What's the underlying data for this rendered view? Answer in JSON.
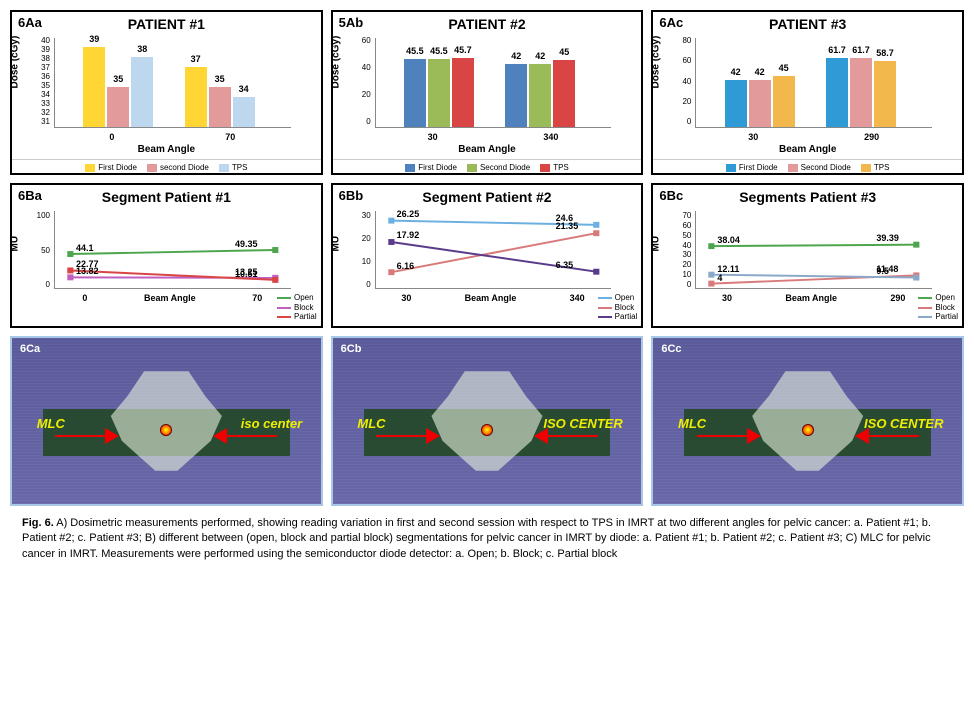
{
  "panels_a": [
    {
      "id": "6Aa",
      "title": "PATIENT #1",
      "y_label": "Dose (cGy)",
      "x_label": "Beam Angle",
      "ylim": [
        31,
        40
      ],
      "yticks": [
        40,
        39,
        38,
        37,
        36,
        35,
        34,
        33,
        32,
        31
      ],
      "groups": [
        {
          "x": "0",
          "bars": [
            {
              "v": 39,
              "c": "#ffd633"
            },
            {
              "v": 35,
              "c": "#e29a9a"
            },
            {
              "v": 38,
              "c": "#bdd7ee"
            }
          ]
        },
        {
          "x": "70",
          "bars": [
            {
              "v": 37,
              "c": "#ffd633"
            },
            {
              "v": 35,
              "c": "#e29a9a"
            },
            {
              "v": 34,
              "c": "#bdd7ee"
            }
          ]
        }
      ],
      "legend": [
        {
          "l": "First Diode",
          "c": "#ffd633"
        },
        {
          "l": "second Diode",
          "c": "#e29a9a"
        },
        {
          "l": "TPS",
          "c": "#bdd7ee"
        }
      ]
    },
    {
      "id": "5Ab",
      "title": "PATIENT #2",
      "y_label": "Dose (cGy)",
      "x_label": "Beam Angle",
      "ylim": [
        0,
        60
      ],
      "yticks": [
        60,
        40,
        20,
        0
      ],
      "groups": [
        {
          "x": "30",
          "bars": [
            {
              "v": 45.5,
              "c": "#4f81bd"
            },
            {
              "v": 45.5,
              "c": "#9bbb59"
            },
            {
              "v": 45.7,
              "c": "#d94545"
            }
          ]
        },
        {
          "x": "340",
          "bars": [
            {
              "v": 42,
              "c": "#4f81bd"
            },
            {
              "v": 42,
              "c": "#9bbb59"
            },
            {
              "v": 45,
              "c": "#d94545"
            }
          ]
        }
      ],
      "legend": [
        {
          "l": "First Diode",
          "c": "#4f81bd"
        },
        {
          "l": "Second Diode",
          "c": "#9bbb59"
        },
        {
          "l": "TPS",
          "c": "#d94545"
        }
      ]
    },
    {
      "id": "6Ac",
      "title": "PATIENT #3",
      "y_label": "Dose (cGy)",
      "x_label": "Beam Angle",
      "ylim": [
        0,
        80
      ],
      "yticks": [
        80,
        60,
        40,
        20,
        0
      ],
      "groups": [
        {
          "x": "30",
          "bars": [
            {
              "v": 42,
              "c": "#2e9bd6"
            },
            {
              "v": 42,
              "c": "#e29a9a"
            },
            {
              "v": 45,
              "c": "#f2b84b"
            }
          ]
        },
        {
          "x": "290",
          "bars": [
            {
              "v": 61.7,
              "c": "#2e9bd6"
            },
            {
              "v": 61.7,
              "c": "#e29a9a"
            },
            {
              "v": 58.7,
              "c": "#f2b84b"
            }
          ]
        }
      ],
      "legend": [
        {
          "l": "First Diode",
          "c": "#2e9bd6"
        },
        {
          "l": "Second Diode",
          "c": "#e29a9a"
        },
        {
          "l": "TPS",
          "c": "#f2b84b"
        }
      ]
    }
  ],
  "panels_b": [
    {
      "id": "6Ba",
      "title": "Segment Patient #1",
      "y_label": "MU",
      "x_label": "Beam Angle",
      "ylim": [
        0,
        100
      ],
      "yticks": [
        100,
        50,
        0
      ],
      "x_cats": [
        "0",
        "70"
      ],
      "series": [
        {
          "name": "Open",
          "c": "#4da64d",
          "pts": [
            {
              "x": 0,
              "y": 44.1,
              "label": "44.1",
              "pos": "l"
            },
            {
              "x": 1,
              "y": 49.35,
              "label": "49.35",
              "pos": "r"
            }
          ]
        },
        {
          "name": "Block",
          "c": "#c060c0",
          "pts": [
            {
              "x": 0,
              "y": 13.82,
              "label": "13.82",
              "pos": "l"
            },
            {
              "x": 1,
              "y": 13.25,
              "label": "13.25",
              "pos": "r"
            }
          ]
        },
        {
          "name": "Partial",
          "c": "#d94545",
          "pts": [
            {
              "x": 0,
              "y": 22.77,
              "label": "22.77",
              "pos": "l"
            },
            {
              "x": 1,
              "y": 10.51,
              "label": "10.51",
              "pos": "r"
            }
          ]
        }
      ],
      "legend": [
        {
          "l": "Open",
          "c": "#4da64d"
        },
        {
          "l": "Block",
          "c": "#c060c0"
        },
        {
          "l": "Partial",
          "c": "#d94545"
        }
      ]
    },
    {
      "id": "6Bb",
      "title": "Segment Patient #2",
      "y_label": "MU",
      "x_label": "Beam Angle",
      "ylim": [
        0,
        30
      ],
      "yticks": [
        30,
        20,
        10,
        0
      ],
      "x_cats": [
        "30",
        "340"
      ],
      "series": [
        {
          "name": "Open",
          "c": "#6bb0e0",
          "pts": [
            {
              "x": 0,
              "y": 26.25,
              "label": "26.25",
              "pos": "l"
            },
            {
              "x": 1,
              "y": 24.6,
              "label": "24.6",
              "pos": "r"
            }
          ]
        },
        {
          "name": "Block",
          "c": "#d97a7a",
          "pts": [
            {
              "x": 0,
              "y": 6.16,
              "label": "6.16",
              "pos": "l"
            },
            {
              "x": 1,
              "y": 21.35,
              "label": "21.35",
              "pos": "r"
            }
          ]
        },
        {
          "name": "Partial",
          "c": "#5a3a8a",
          "pts": [
            {
              "x": 0,
              "y": 17.92,
              "label": "17.92",
              "pos": "l"
            },
            {
              "x": 1,
              "y": 6.35,
              "label": "6.35",
              "pos": "r"
            }
          ]
        }
      ],
      "legend": [
        {
          "l": "Open",
          "c": "#6bb0e0"
        },
        {
          "l": "Block",
          "c": "#d97a7a"
        },
        {
          "l": "Partial",
          "c": "#5a3a8a"
        }
      ]
    },
    {
      "id": "6Bc",
      "title": "Segments Patient #3",
      "y_label": "MU",
      "x_label": "Beam Angle",
      "ylim": [
        0,
        70
      ],
      "yticks": [
        70,
        60,
        50,
        40,
        30,
        20,
        10,
        0
      ],
      "x_cats": [
        "30",
        "290"
      ],
      "series": [
        {
          "name": "Open",
          "c": "#4da64d",
          "pts": [
            {
              "x": 0,
              "y": 38.04,
              "label": "38.04",
              "pos": "l"
            },
            {
              "x": 1,
              "y": 39.39,
              "label": "39.39",
              "pos": "r"
            }
          ]
        },
        {
          "name": "Block",
          "c": "#d97a7a",
          "pts": [
            {
              "x": 0,
              "y": 4,
              "label": "4",
              "pos": "l"
            },
            {
              "x": 1,
              "y": 11.48,
              "label": "11.48",
              "pos": "r"
            }
          ]
        },
        {
          "name": "Partial",
          "c": "#8aa8c8",
          "pts": [
            {
              "x": 0,
              "y": 12.11,
              "label": "12.11",
              "pos": "l"
            },
            {
              "x": 1,
              "y": 9.5,
              "label": "9.5",
              "pos": "r"
            }
          ]
        }
      ],
      "legend": [
        {
          "l": "Open",
          "c": "#4da64d"
        },
        {
          "l": "Block",
          "c": "#d97a7a"
        },
        {
          "l": "Partial",
          "c": "#8aa8c8"
        }
      ]
    }
  ],
  "panels_c": [
    {
      "id": "6Ca",
      "mlc": "MLC",
      "iso": "iso center",
      "iso_style": "italic-lower"
    },
    {
      "id": "6Cb",
      "mlc": "MLC",
      "iso": "ISO CENTER",
      "iso_style": "caps"
    },
    {
      "id": "6Cc",
      "mlc": "MLC",
      "iso": "ISO CENTER",
      "iso_style": "caps"
    }
  ],
  "caption_bold": "Fig. 6.",
  "caption_text": " A) Dosimetric measurements performed, showing reading variation in first and second session with respect to TPS in IMRT at two different angles for pelvic cancer: a. Patient #1; b. Patient #2; c. Patient #3; B) different between (open, block and partial block) segmentations for pelvic cancer in IMRT by diode: a. Patient #1; b. Patient #2; c. Patient #3; C) MLC for pelvic cancer in IMRT. Measurements were performed using the semiconductor diode detector: a. Open; b. Block; c. Partial block"
}
